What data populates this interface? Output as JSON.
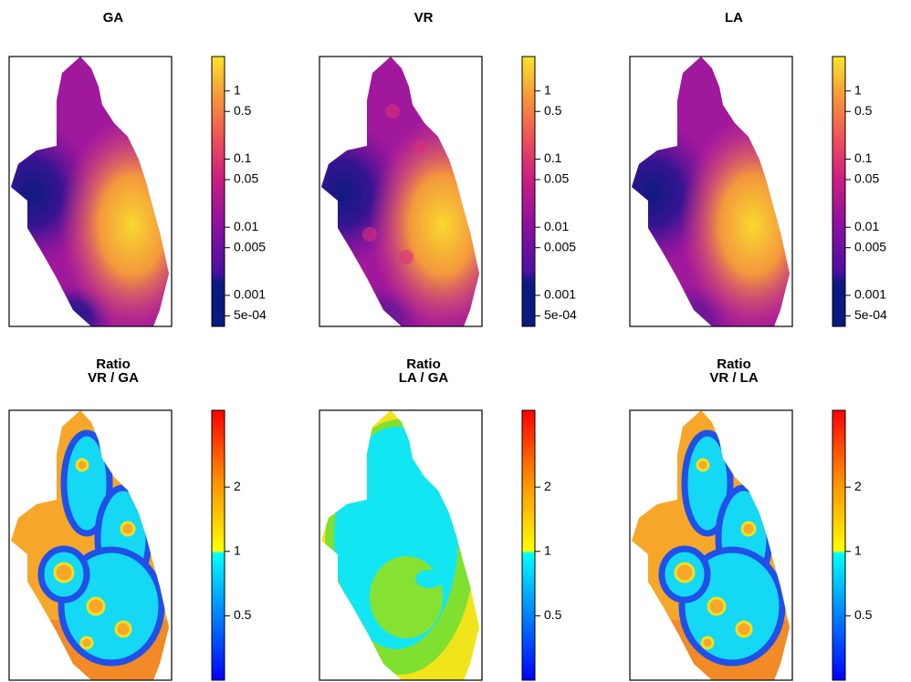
{
  "chart_data": [
    {
      "type": "map",
      "title": "GA",
      "scale": "log",
      "clim": [
        0.00035,
        3.2
      ],
      "ticks": [
        1,
        0.5,
        0.1,
        0.05,
        0.01,
        0.005,
        0.001,
        {
          "value": 0.0005,
          "label": "5e-04"
        }
      ]
    },
    {
      "type": "map",
      "title": "VR",
      "scale": "log",
      "clim": [
        0.00035,
        3.2
      ],
      "ticks": [
        1,
        0.5,
        0.1,
        0.05,
        0.01,
        0.005,
        0.001,
        {
          "value": 0.0005,
          "label": "5e-04"
        }
      ]
    },
    {
      "type": "map",
      "title": "LA",
      "scale": "log",
      "clim": [
        0.00035,
        3.2
      ],
      "ticks": [
        1,
        0.5,
        0.1,
        0.05,
        0.01,
        0.005,
        0.001,
        {
          "value": 0.0005,
          "label": "5e-04"
        }
      ]
    },
    {
      "type": "ratio-map",
      "title": "Ratio",
      "subtitle": "VR / GA",
      "scale": "log",
      "clim": [
        0.25,
        4.57
      ],
      "ticks": [
        2,
        1,
        0.5
      ]
    },
    {
      "type": "ratio-map",
      "title": "Ratio",
      "subtitle": "LA / GA",
      "scale": "log",
      "clim": [
        0.25,
        4.57
      ],
      "ticks": [
        2,
        1,
        0.5
      ]
    },
    {
      "type": "ratio-map",
      "title": "Ratio",
      "subtitle": "VR / LA",
      "scale": "log",
      "clim": [
        0.25,
        4.57
      ],
      "ticks": [
        2,
        1,
        0.5
      ]
    }
  ]
}
